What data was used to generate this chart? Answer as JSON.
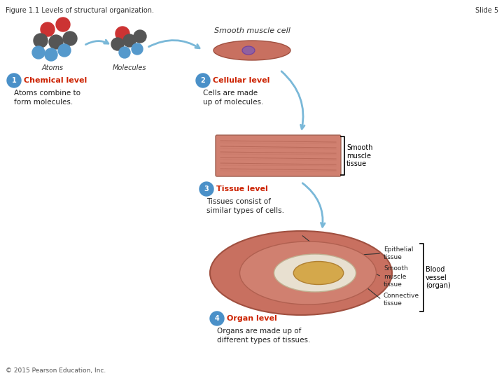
{
  "title_left": "Figure 1.1 Levels of structural organization.",
  "title_right": "Slide 5",
  "background_color": "#ffffff",
  "figsize": [
    7.2,
    5.4
  ],
  "dpi": 100,
  "copyright": "© 2015 Pearson Education, Inc.",
  "level1_circle_label": "1",
  "level1_bold": "Chemical level",
  "level1_text": "Atoms combine to\nform molecules.",
  "level1_atoms_label": "Atoms",
  "level1_mol_label": "Molecules",
  "level2_circle_label": "2",
  "level2_bold": "Cellular level",
  "level2_text": "Cells are made\nup of molecules.",
  "level2_cell_label": "Smooth muscle cell",
  "level3_circle_label": "3",
  "level3_bold": "Tissue level",
  "level3_text": "Tissues consist of\nsimilar types of cells.",
  "level3_tissue_label": "Smooth\nmuscle\ntissue",
  "level4_circle_label": "4",
  "level4_bold": "Organ level",
  "level4_text": "Organs are made up of\ndifferent types of tissues.",
  "organ_label1": "Epithelial\ntissue",
  "organ_label2": "Smooth\nmuscle\ntissue",
  "organ_label3": "Connective\ntissue",
  "organ_label4": "Blood\nvessel\n(organ)",
  "circle_color": "#4a90c8",
  "circle_text_color": "#ffffff",
  "bold_color": "#cc2200",
  "arrow_color": "#7ab8d8",
  "bracket_color": "#000000",
  "atom_colors": [
    "#cc3333",
    "#cc3333",
    "#555555",
    "#555555",
    "#555555",
    "#5599cc",
    "#5599cc",
    "#5599cc"
  ],
  "mol_colors": [
    "#cc3333",
    "#555555",
    "#555555",
    "#555555",
    "#5599cc",
    "#5599cc"
  ],
  "tissue_color": "#c8756a",
  "vessel_outer": "#c87060",
  "vessel_inner": "#e8c090",
  "cell_color": "#c87060",
  "cell_nucleus": "#9060a0"
}
